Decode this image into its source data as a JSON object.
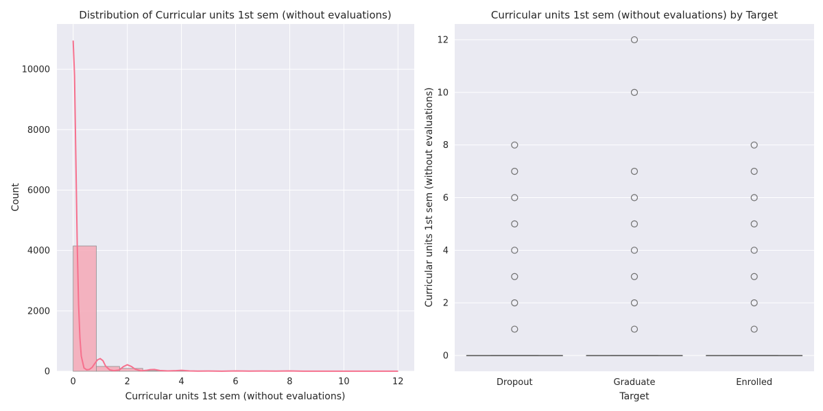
{
  "chart_data": [
    {
      "type": "bar",
      "subtype": "histogram_with_kde",
      "title": "Distribution of Curricular units 1st sem (without evaluations)",
      "xlabel": "Curricular units 1st sem (without evaluations)",
      "ylabel": "Count",
      "xlim": [
        -0.6,
        12.6
      ],
      "ylim": [
        0,
        11500
      ],
      "xticks": [
        0,
        2,
        4,
        6,
        8,
        10,
        12
      ],
      "yticks": [
        0,
        2000,
        4000,
        6000,
        8000,
        10000
      ],
      "grid": true,
      "bins": [
        {
          "x0": 0.0,
          "x1": 0.857,
          "count": 4150
        },
        {
          "x0": 0.857,
          "x1": 1.714,
          "count": 160
        },
        {
          "x0": 1.714,
          "x1": 2.571,
          "count": 95
        },
        {
          "x0": 2.571,
          "x1": 3.429,
          "count": 20
        },
        {
          "x0": 3.429,
          "x1": 4.286,
          "count": 14
        },
        {
          "x0": 4.286,
          "x1": 5.143,
          "count": 4
        },
        {
          "x0": 5.143,
          "x1": 6.0,
          "count": 2
        },
        {
          "x0": 6.0,
          "x1": 6.857,
          "count": 5
        },
        {
          "x0": 6.857,
          "x1": 7.714,
          "count": 4
        },
        {
          "x0": 7.714,
          "x1": 8.571,
          "count": 4
        },
        {
          "x0": 8.571,
          "x1": 9.429,
          "count": 0
        },
        {
          "x0": 9.429,
          "x1": 10.286,
          "count": 1
        },
        {
          "x0": 10.286,
          "x1": 11.143,
          "count": 0
        },
        {
          "x0": 11.143,
          "x1": 12.0,
          "count": 1
        }
      ],
      "kde": {
        "x": [
          0,
          0.05,
          0.1,
          0.15,
          0.2,
          0.25,
          0.3,
          0.4,
          0.5,
          0.6,
          0.7,
          0.8,
          0.9,
          1.0,
          1.1,
          1.2,
          1.35,
          1.5,
          1.7,
          1.85,
          2.0,
          2.15,
          2.3,
          2.5,
          2.7,
          2.85,
          3.0,
          3.2,
          3.5,
          3.8,
          4.0,
          4.3,
          4.6,
          5.0,
          5.5,
          6.0,
          6.5,
          7.0,
          7.5,
          8.0,
          8.5,
          9.0,
          10.0,
          11.0,
          12.0
        ],
        "y": [
          10950,
          9800,
          7000,
          4200,
          2200,
          1100,
          500,
          110,
          50,
          60,
          130,
          260,
          380,
          420,
          350,
          170,
          45,
          20,
          40,
          150,
          215,
          160,
          65,
          15,
          30,
          55,
          60,
          25,
          10,
          20,
          30,
          12,
          6,
          8,
          4,
          10,
          6,
          8,
          5,
          10,
          4,
          2,
          3,
          2,
          2
        ]
      },
      "colors": {
        "bar": "#f4a8b6",
        "kde": "#f6708d"
      }
    },
    {
      "type": "box",
      "title": "Curricular units 1st sem (without evaluations) by Target",
      "xlabel": "Target",
      "ylabel": "Curricular units 1st sem (without evaluations)",
      "ylim": [
        -0.6,
        12.6
      ],
      "yticks": [
        0,
        2,
        4,
        6,
        8,
        10,
        12
      ],
      "grid": true,
      "categories": [
        "Dropout",
        "Graduate",
        "Enrolled"
      ],
      "boxes": [
        {
          "name": "Dropout",
          "q1": 0,
          "median": 0,
          "q3": 0,
          "whisker_low": 0,
          "whisker_high": 0,
          "outliers": [
            1,
            2,
            3,
            4,
            5,
            6,
            7,
            8
          ]
        },
        {
          "name": "Graduate",
          "q1": 0,
          "median": 0,
          "q3": 0,
          "whisker_low": 0,
          "whisker_high": 0,
          "outliers": [
            1,
            2,
            3,
            4,
            5,
            6,
            7,
            10,
            12
          ]
        },
        {
          "name": "Enrolled",
          "q1": 0,
          "median": 0,
          "q3": 0,
          "whisker_low": 0,
          "whisker_high": 0,
          "outliers": [
            1,
            2,
            3,
            4,
            5,
            6,
            7,
            8
          ]
        }
      ],
      "colors": {
        "box_line": "#6e6e6e",
        "outlier_edge": "#6e6e6e"
      }
    }
  ]
}
